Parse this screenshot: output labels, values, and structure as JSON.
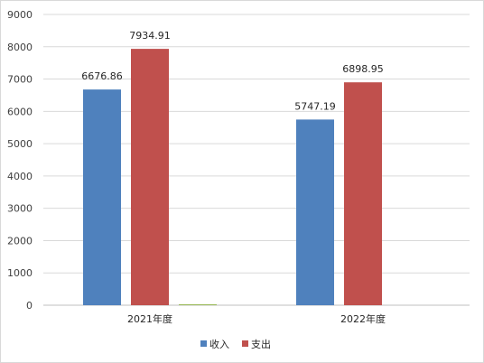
{
  "chart_data": {
    "type": "bar",
    "categories": [
      "2021年度",
      "2022年度"
    ],
    "series": [
      {
        "name": "收入",
        "color": "#4F81BD",
        "values": [
          6676.86,
          5747.19
        ],
        "labels": [
          "6676.86",
          "5747.19"
        ]
      },
      {
        "name": "支出",
        "color": "#C0504D",
        "values": [
          7934.91,
          6898.95
        ],
        "labels": [
          "7934.91",
          "6898.95"
        ]
      },
      {
        "color": "#9BBB59",
        "values": [
          30,
          0
        ],
        "labels": [
          "",
          ""
        ]
      }
    ],
    "ylim": [
      0,
      9000
    ],
    "yticks": [
      0,
      1000,
      2000,
      3000,
      4000,
      5000,
      6000,
      7000,
      8000,
      9000
    ],
    "grid": true,
    "legend_position": "bottom"
  }
}
